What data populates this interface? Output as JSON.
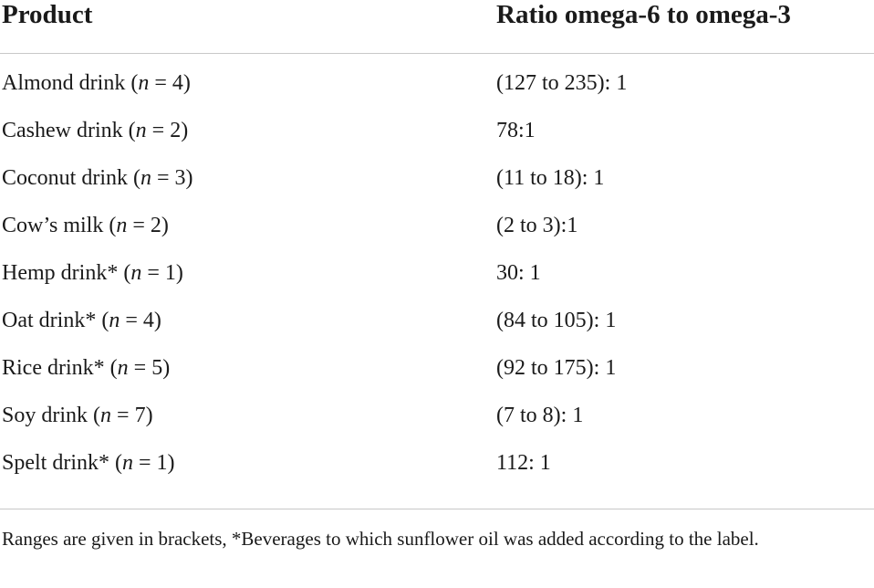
{
  "table": {
    "headers": {
      "product": "Product",
      "ratio": "Ratio omega-6 to omega-3"
    },
    "rows": [
      {
        "name": "Almond drink",
        "n": "4",
        "ratio": "(127 to 235): 1"
      },
      {
        "name": "Cashew drink",
        "n": "2",
        "ratio": "78:1"
      },
      {
        "name": "Coconut drink",
        "n": "3",
        "ratio": "(11 to 18): 1"
      },
      {
        "name": "Cow’s milk",
        "n": "2",
        "ratio": "(2 to 3):1"
      },
      {
        "name": "Hemp drink*",
        "n": "1",
        "ratio": "30: 1"
      },
      {
        "name": "Oat drink*",
        "n": "4",
        "ratio": "(84 to 105): 1"
      },
      {
        "name": "Rice drink*",
        "n": "5",
        "ratio": "(92 to 175): 1"
      },
      {
        "name": "Soy drink",
        "n": "7",
        "ratio": "(7 to 8): 1"
      },
      {
        "name": "Spelt drink*",
        "n": "1",
        "ratio": "112: 1"
      }
    ],
    "n_symbol": "n",
    "footnote": "Ranges are given in brackets, *Beverages to which sunflower oil was added according to the label."
  }
}
